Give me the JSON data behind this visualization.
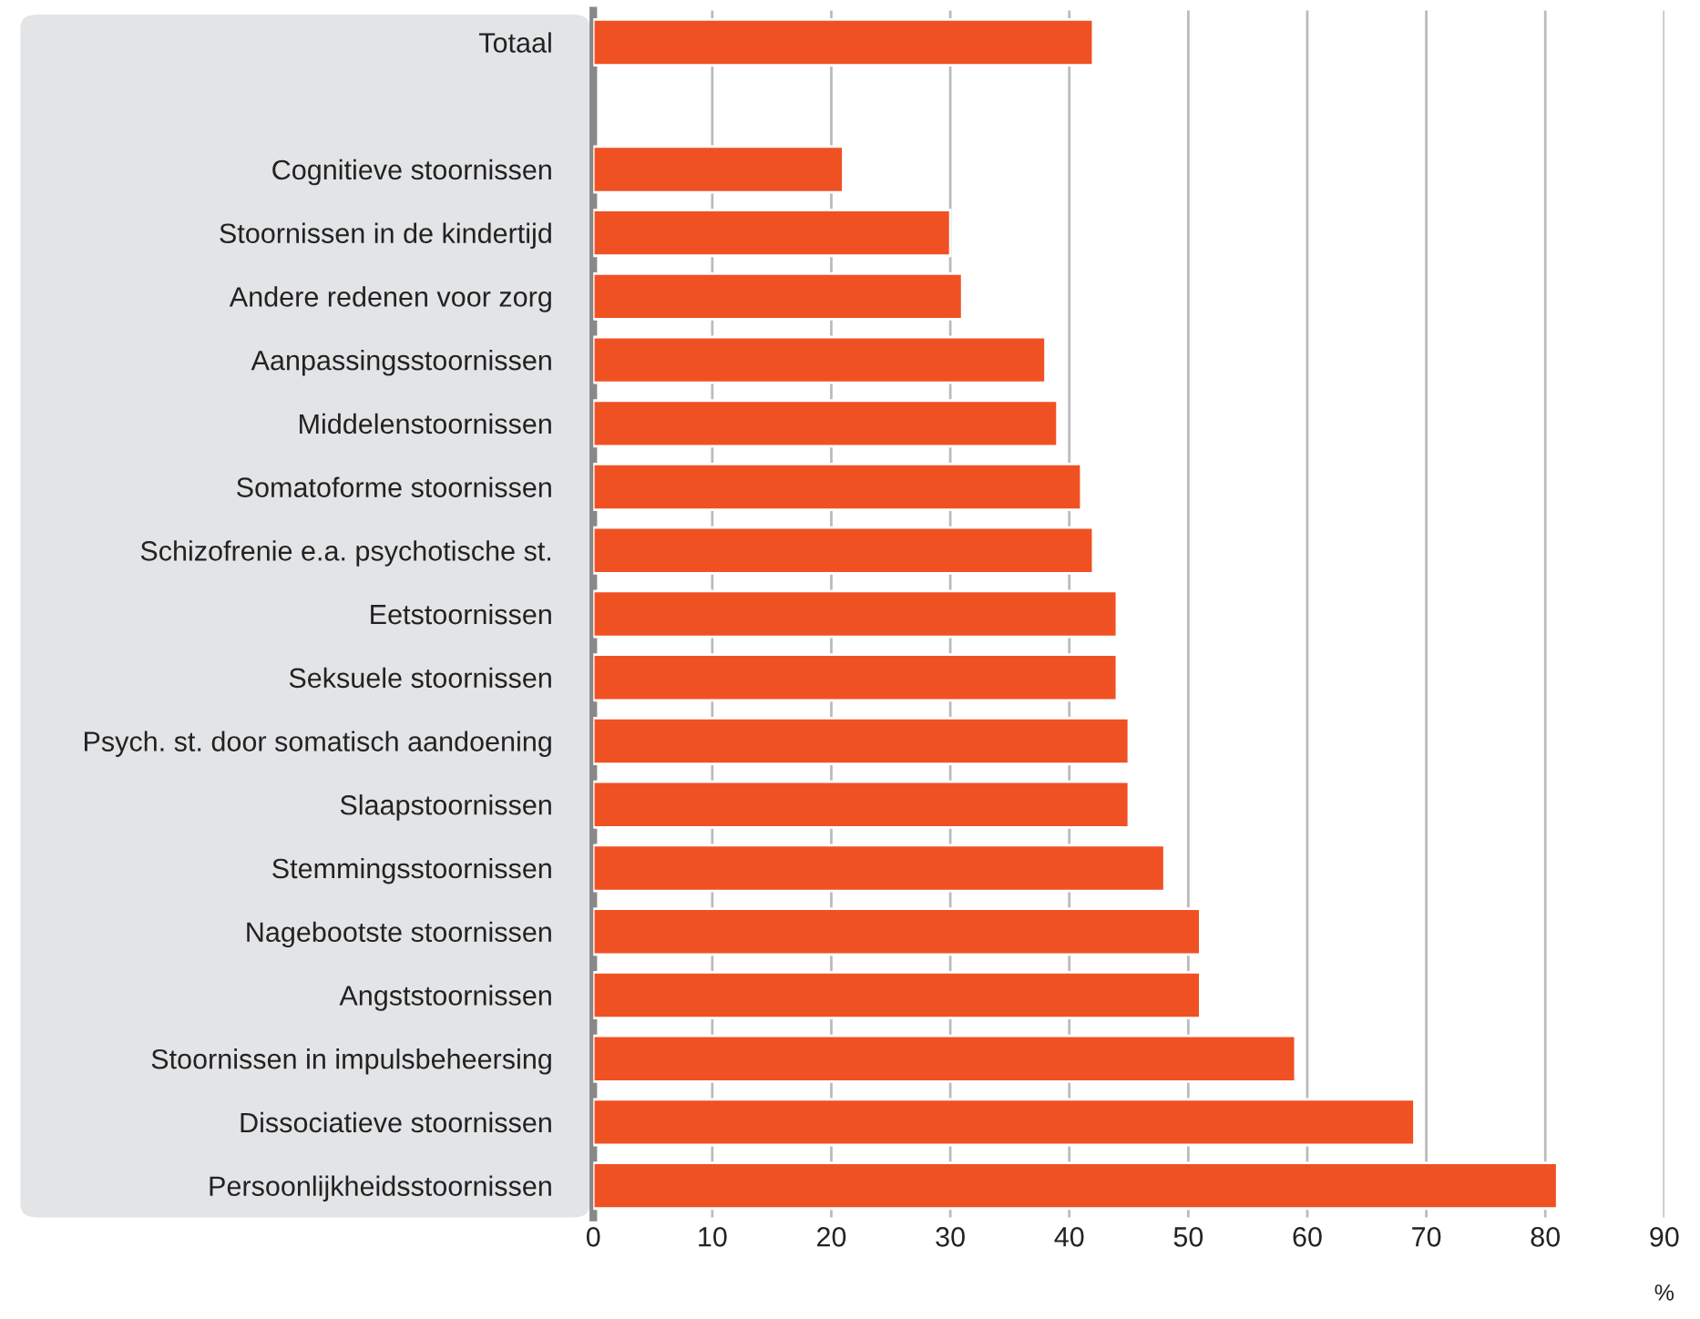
{
  "chart_data": {
    "type": "bar",
    "orientation": "horizontal",
    "xlabel": "%",
    "categories": [
      "Totaal",
      null,
      "Cognitieve stoornissen",
      "Stoornissen in de kindertijd",
      "Andere redenen voor zorg",
      "Aanpassingsstoornissen",
      "Middelenstoornissen",
      "Somatoforme stoornissen",
      "Schizofrenie e.a. psychotische st.",
      "Eetstoornissen",
      "Seksuele stoornissen",
      "Psych. st. door somatisch aandoening",
      "Slaapstoornissen",
      "Stemmingsstoornissen",
      "Nagebootste stoornissen",
      "Angststoornissen",
      "Stoornissen in impulsbeheersing",
      "Dissociatieve stoornissen",
      "Persoonlijkheidsstoornissen"
    ],
    "values": [
      42,
      null,
      21,
      30,
      31,
      38,
      39,
      41,
      42,
      44,
      44,
      45,
      45,
      48,
      51,
      51,
      59,
      69,
      81
    ],
    "color": "#f05123",
    "xlim": [
      0,
      90
    ],
    "xticks": [
      0,
      10,
      20,
      30,
      40,
      50,
      60,
      70,
      80,
      90
    ],
    "grid": "x",
    "legend": false
  }
}
